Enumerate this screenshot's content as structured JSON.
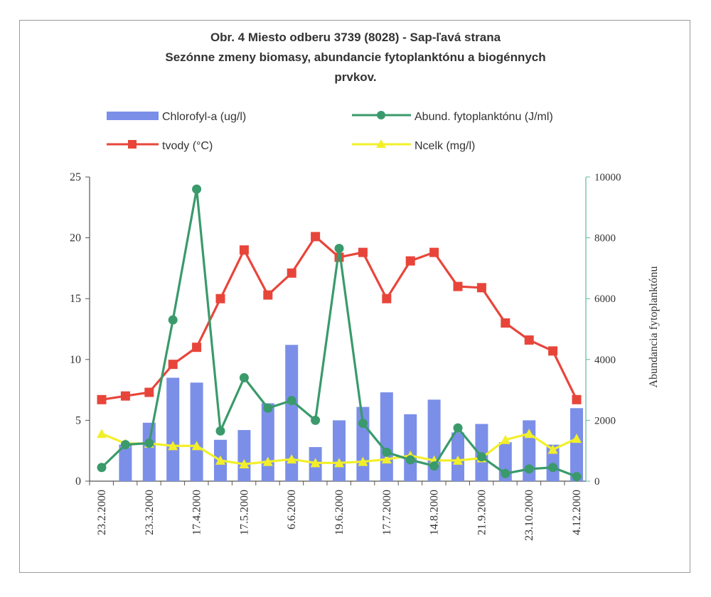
{
  "chart_data": {
    "type": "bar",
    "title": [
      "Obr. 4 Miesto odberu 3739 (8028) - Sap-ľavá strana",
      "Sezónne zmeny biomasy, abundancie fytoplanktónu a biogénnych",
      "prvkov."
    ],
    "xlabel": "",
    "ylabel": "",
    "ylabel_right": "Abundancia fytoplanktónu",
    "ylim": [
      0,
      25
    ],
    "ylim_right": [
      0,
      10000
    ],
    "yticks": [
      "0",
      "5",
      "10",
      "15",
      "20",
      "25"
    ],
    "yticks_right": [
      "0",
      "2000",
      "4000",
      "6000",
      "8000",
      "10000"
    ],
    "xtick_labels": [
      "23.2.2000",
      "23.3.2000",
      "17.4.2000",
      "17.5.2000",
      "6.6.2000",
      "19.6.2000",
      "17.7.2000",
      "14.8.2000",
      "21.9.2000",
      "23.10.2000",
      "4.12.2000"
    ],
    "legend_position": "top",
    "series": [
      {
        "name": "Chlorofyl-a (ug/l)",
        "type": "bar",
        "axis": "left",
        "color": "#7b8fe8",
        "values": [
          0,
          3,
          4.8,
          8.5,
          8.1,
          3.4,
          4.2,
          6.4,
          11.2,
          2.8,
          5.0,
          6.1,
          7.3,
          5.5,
          6.7,
          4.0,
          4.7,
          3.2,
          5.0,
          3.0,
          6.0
        ]
      },
      {
        "name": "Abund. fytoplanktónu (J/ml)",
        "type": "line",
        "axis": "right",
        "color": "#3a9a6b",
        "marker": "circle",
        "values": [
          450,
          1200,
          1250,
          5300,
          9600,
          1650,
          3400,
          2400,
          2650,
          2000,
          7650,
          1900,
          950,
          700,
          500,
          1750,
          800,
          250,
          400,
          450,
          150
        ]
      },
      {
        "name": "tvody (°C)",
        "type": "line",
        "axis": "left",
        "color": "#e8453a",
        "marker": "square",
        "values": [
          6.7,
          7.0,
          7.3,
          9.6,
          11.0,
          15.0,
          19.0,
          15.3,
          17.1,
          20.1,
          18.4,
          18.8,
          15.0,
          18.1,
          18.8,
          16.0,
          15.9,
          13.0,
          11.6,
          10.7,
          6.7
        ]
      },
      {
        "name": "Ncelk (mg/l)",
        "type": "line",
        "axis": "left",
        "color": "#f2ef2a",
        "marker": "triangle",
        "values": [
          3.9,
          3.1,
          3.1,
          2.9,
          2.9,
          1.7,
          1.4,
          1.6,
          1.8,
          1.5,
          1.5,
          1.6,
          1.8,
          2.1,
          1.7,
          1.7,
          1.9,
          3.4,
          3.9,
          2.6,
          3.5
        ]
      }
    ]
  }
}
